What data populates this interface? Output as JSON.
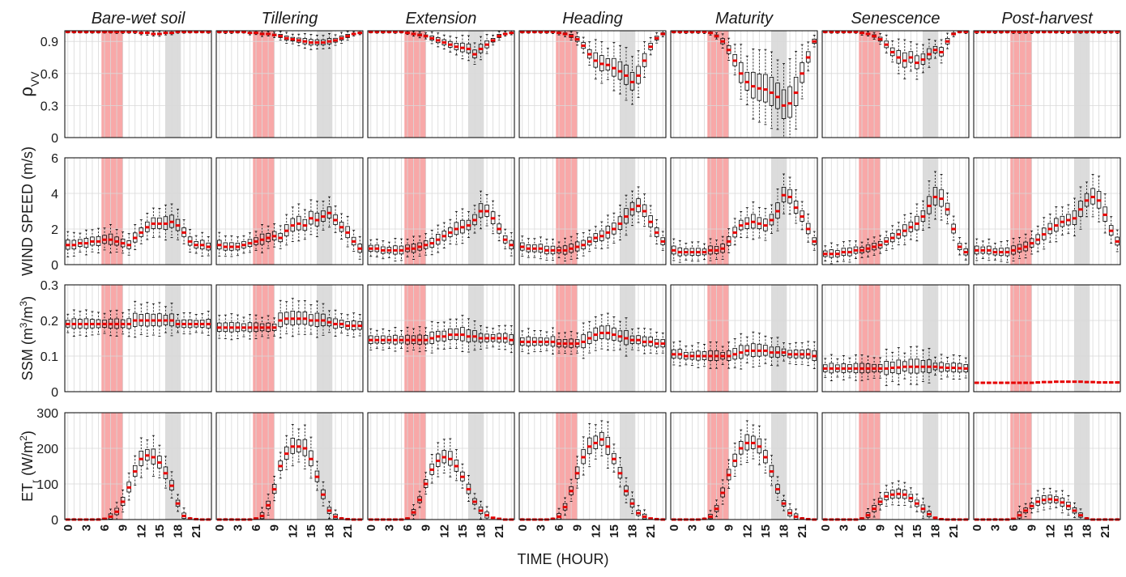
{
  "figure": {
    "stages": [
      "Bare-wet soil",
      "Tillering",
      "Extension",
      "Heading",
      "Maturity",
      "Senescence",
      "Post-harvest"
    ],
    "x_axis_label": "TIME (HOUR)",
    "x_ticks": [
      "0",
      "3",
      "6",
      "9",
      "12",
      "15",
      "18",
      "21"
    ],
    "red_band_hours": [
      6,
      9
    ],
    "gray_band_hours": [
      16,
      18
    ],
    "colors": {
      "red_band": "#f8a8a8",
      "gray_band": "#dcdcdc",
      "median": "#e60000",
      "box": "#000000",
      "grid": "#d9d9d9"
    }
  },
  "rows": [
    {
      "key": "rho",
      "label_main": "ρ",
      "label_sub": "VV",
      "ylim": [
        0,
        1
      ],
      "yticks": [
        "0",
        "0.3",
        "0.6",
        "0.9"
      ],
      "ytick_vals": [
        0,
        0.3,
        0.6,
        0.9
      ]
    },
    {
      "key": "wind",
      "label_main": "WIND SPEED (m/s)",
      "ylim": [
        0,
        6
      ],
      "yticks": [
        "0",
        "2",
        "4",
        "6"
      ],
      "ytick_vals": [
        0,
        2,
        4,
        6
      ]
    },
    {
      "key": "ssm",
      "label_main": "SSM (m",
      "label_sup1": "3",
      "label_mid": "/m",
      "label_sup2": "3",
      "label_end": ")",
      "ylim": [
        0,
        0.3
      ],
      "yticks": [
        "0",
        "0.1",
        "0.2",
        "0.3"
      ],
      "ytick_vals": [
        0,
        0.1,
        0.2,
        0.3
      ]
    },
    {
      "key": "et",
      "label_main": "ET",
      "label_sub": "r",
      "label_mid": " (W/m",
      "label_sup1": "2",
      "label_end": ")",
      "ylim": [
        0,
        300
      ],
      "yticks": [
        "0",
        "100",
        "200",
        "300"
      ],
      "ytick_vals": [
        0,
        100,
        200,
        300
      ]
    }
  ],
  "chart_data": {
    "type": "box",
    "xlabel": "TIME (HOUR)",
    "x": [
      0,
      1,
      2,
      3,
      4,
      5,
      6,
      7,
      8,
      9,
      10,
      11,
      12,
      13,
      14,
      15,
      16,
      17,
      18,
      19,
      20,
      21,
      22,
      23
    ],
    "panels": {
      "rho": {
        "Bare-wet soil": [
          0.99,
          0.99,
          0.99,
          0.99,
          0.99,
          0.99,
          0.99,
          0.99,
          0.99,
          0.99,
          0.99,
          0.99,
          0.98,
          0.98,
          0.97,
          0.97,
          0.98,
          0.98,
          0.99,
          0.99,
          0.99,
          0.99,
          0.99,
          0.99
        ],
        "Tillering": [
          0.99,
          0.99,
          0.99,
          0.99,
          0.99,
          0.98,
          0.98,
          0.97,
          0.97,
          0.96,
          0.95,
          0.93,
          0.92,
          0.91,
          0.9,
          0.89,
          0.89,
          0.89,
          0.9,
          0.91,
          0.93,
          0.95,
          0.97,
          0.98
        ],
        "Extension": [
          0.99,
          0.99,
          0.99,
          0.99,
          0.99,
          0.99,
          0.98,
          0.97,
          0.96,
          0.95,
          0.93,
          0.91,
          0.89,
          0.87,
          0.85,
          0.84,
          0.83,
          0.78,
          0.83,
          0.87,
          0.91,
          0.95,
          0.97,
          0.98
        ],
        "Heading": [
          0.99,
          0.99,
          0.99,
          0.99,
          0.99,
          0.99,
          0.98,
          0.97,
          0.95,
          0.92,
          0.86,
          0.78,
          0.72,
          0.69,
          0.68,
          0.65,
          0.62,
          0.58,
          0.52,
          0.58,
          0.72,
          0.85,
          0.93,
          0.97
        ],
        "Maturity": [
          0.99,
          0.99,
          0.99,
          0.99,
          0.99,
          0.99,
          0.98,
          0.95,
          0.9,
          0.82,
          0.72,
          0.6,
          0.52,
          0.48,
          0.46,
          0.45,
          0.42,
          0.38,
          0.3,
          0.32,
          0.42,
          0.6,
          0.75,
          0.9
        ],
        "Senescence": [
          0.99,
          0.99,
          0.99,
          0.99,
          0.99,
          0.99,
          0.98,
          0.97,
          0.95,
          0.92,
          0.87,
          0.8,
          0.75,
          0.72,
          0.75,
          0.7,
          0.73,
          0.78,
          0.82,
          0.8,
          0.9,
          0.97,
          0.99,
          0.99
        ],
        "Post-harvest": [
          0.99,
          0.99,
          0.99,
          0.99,
          0.99,
          0.99,
          0.99,
          0.99,
          0.99,
          0.99,
          0.99,
          0.99,
          0.99,
          0.99,
          0.99,
          0.99,
          0.99,
          0.99,
          0.99,
          0.99,
          0.99,
          0.99,
          0.99,
          0.99
        ]
      },
      "wind": {
        "Bare-wet soil": [
          1.1,
          1.1,
          1.2,
          1.2,
          1.3,
          1.3,
          1.4,
          1.4,
          1.3,
          1.2,
          1.1,
          1.5,
          1.8,
          2.1,
          2.3,
          2.3,
          2.3,
          2.4,
          2.2,
          1.8,
          1.3,
          1.1,
          1.1,
          1.0
        ],
        "Tillering": [
          1.1,
          1.0,
          1.0,
          1.0,
          1.1,
          1.2,
          1.3,
          1.4,
          1.5,
          1.6,
          1.5,
          1.9,
          2.2,
          2.3,
          2.2,
          2.6,
          2.5,
          2.7,
          2.9,
          2.5,
          2.1,
          1.8,
          1.3,
          0.9
        ],
        "Extension": [
          0.9,
          0.9,
          0.8,
          0.8,
          0.8,
          0.8,
          0.9,
          0.9,
          1.0,
          1.1,
          1.2,
          1.4,
          1.6,
          1.8,
          2.0,
          2.1,
          2.2,
          2.5,
          3.0,
          3.0,
          2.6,
          2.0,
          1.4,
          1.1
        ],
        "Heading": [
          1.0,
          0.9,
          0.9,
          0.9,
          0.8,
          0.8,
          0.8,
          0.8,
          0.9,
          1.0,
          1.1,
          1.3,
          1.5,
          1.6,
          1.8,
          2.0,
          2.3,
          2.7,
          3.1,
          3.3,
          3.0,
          2.4,
          1.8,
          1.3
        ],
        "Maturity": [
          0.8,
          0.7,
          0.7,
          0.7,
          0.7,
          0.7,
          0.8,
          0.8,
          0.9,
          1.3,
          1.8,
          2.2,
          2.3,
          2.4,
          2.3,
          2.2,
          2.5,
          3.0,
          3.9,
          3.8,
          3.2,
          2.7,
          2.0,
          1.3
        ],
        "Senescence": [
          0.6,
          0.6,
          0.6,
          0.7,
          0.7,
          0.8,
          0.8,
          0.9,
          1.0,
          1.1,
          1.3,
          1.5,
          1.7,
          1.9,
          2.1,
          2.3,
          2.7,
          3.3,
          3.8,
          3.7,
          3.1,
          2.0,
          1.0,
          0.7
        ],
        "Post-harvest": [
          0.8,
          0.8,
          0.8,
          0.7,
          0.7,
          0.7,
          0.8,
          0.9,
          1.0,
          1.2,
          1.4,
          1.7,
          2.0,
          2.2,
          2.4,
          2.5,
          2.6,
          3.1,
          3.6,
          3.8,
          3.6,
          2.8,
          1.9,
          1.3
        ]
      },
      "ssm": {
        "Bare-wet soil": [
          0.19,
          0.19,
          0.19,
          0.19,
          0.19,
          0.19,
          0.19,
          0.19,
          0.19,
          0.19,
          0.19,
          0.2,
          0.2,
          0.2,
          0.2,
          0.2,
          0.2,
          0.2,
          0.19,
          0.19,
          0.19,
          0.19,
          0.19,
          0.19
        ],
        "Tillering": [
          0.18,
          0.18,
          0.18,
          0.18,
          0.18,
          0.18,
          0.18,
          0.18,
          0.18,
          0.18,
          0.2,
          0.205,
          0.205,
          0.205,
          0.205,
          0.2,
          0.2,
          0.2,
          0.195,
          0.19,
          0.19,
          0.185,
          0.185,
          0.185
        ],
        "Extension": [
          0.145,
          0.145,
          0.145,
          0.145,
          0.145,
          0.145,
          0.145,
          0.145,
          0.145,
          0.145,
          0.15,
          0.155,
          0.155,
          0.16,
          0.16,
          0.16,
          0.155,
          0.155,
          0.15,
          0.15,
          0.15,
          0.15,
          0.15,
          0.145
        ],
        "Heading": [
          0.14,
          0.14,
          0.14,
          0.14,
          0.14,
          0.14,
          0.135,
          0.135,
          0.135,
          0.135,
          0.14,
          0.15,
          0.16,
          0.165,
          0.165,
          0.16,
          0.155,
          0.15,
          0.145,
          0.145,
          0.14,
          0.14,
          0.135,
          0.135
        ],
        "Maturity": [
          0.105,
          0.105,
          0.1,
          0.1,
          0.1,
          0.1,
          0.1,
          0.1,
          0.1,
          0.1,
          0.105,
          0.11,
          0.115,
          0.115,
          0.115,
          0.115,
          0.11,
          0.11,
          0.11,
          0.105,
          0.105,
          0.105,
          0.105,
          0.1
        ],
        "Senescence": [
          0.065,
          0.065,
          0.065,
          0.065,
          0.065,
          0.065,
          0.065,
          0.065,
          0.065,
          0.065,
          0.065,
          0.067,
          0.068,
          0.07,
          0.07,
          0.07,
          0.07,
          0.07,
          0.07,
          0.068,
          0.067,
          0.067,
          0.066,
          0.065
        ],
        "Post-harvest": [
          0.025,
          0.025,
          0.025,
          0.025,
          0.025,
          0.025,
          0.025,
          0.025,
          0.025,
          0.025,
          0.026,
          0.027,
          0.027,
          0.028,
          0.028,
          0.028,
          0.028,
          0.028,
          0.027,
          0.027,
          0.026,
          0.026,
          0.026,
          0.026
        ]
      },
      "et": {
        "Bare-wet soil": [
          0,
          0,
          0,
          0,
          0,
          0,
          2,
          8,
          22,
          50,
          90,
          135,
          170,
          180,
          175,
          160,
          130,
          95,
          45,
          10,
          3,
          1,
          0,
          0
        ],
        "Tillering": [
          0,
          0,
          0,
          0,
          0,
          0,
          3,
          10,
          40,
          85,
          150,
          185,
          205,
          205,
          200,
          170,
          120,
          70,
          25,
          8,
          3,
          1,
          0,
          0
        ],
        "Extension": [
          0,
          0,
          0,
          0,
          0,
          0,
          3,
          20,
          55,
          100,
          140,
          165,
          175,
          170,
          150,
          120,
          85,
          50,
          25,
          12,
          5,
          2,
          0,
          0
        ],
        "Heading": [
          0,
          0,
          0,
          0,
          0,
          2,
          8,
          35,
          80,
          130,
          175,
          205,
          215,
          225,
          205,
          170,
          130,
          80,
          45,
          18,
          8,
          3,
          1,
          0
        ],
        "Maturity": [
          0,
          0,
          0,
          0,
          0,
          2,
          8,
          30,
          75,
          125,
          165,
          200,
          215,
          215,
          205,
          175,
          135,
          85,
          45,
          18,
          8,
          3,
          1,
          0
        ],
        "Senescence": [
          0,
          0,
          0,
          0,
          0,
          0,
          3,
          12,
          30,
          50,
          65,
          70,
          72,
          70,
          60,
          45,
          30,
          15,
          5,
          1,
          0,
          0,
          0,
          0
        ],
        "Post-harvest": [
          0,
          0,
          0,
          0,
          0,
          0,
          2,
          12,
          25,
          38,
          50,
          55,
          57,
          55,
          48,
          38,
          25,
          12,
          3,
          0,
          0,
          0,
          0,
          0
        ]
      }
    }
  }
}
